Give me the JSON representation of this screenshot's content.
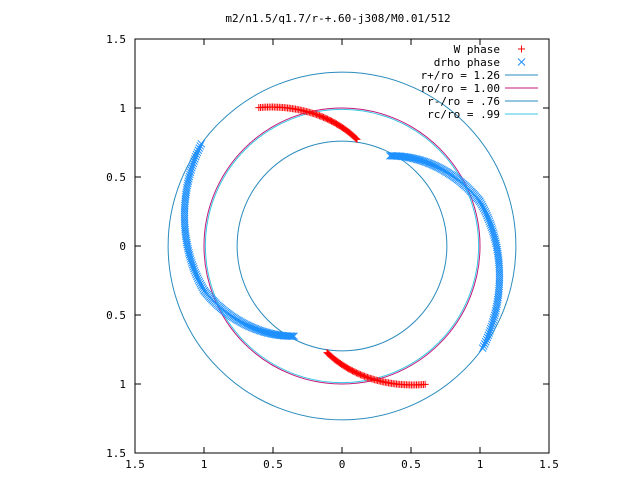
{
  "chart_data": {
    "type": "scatter",
    "title": "m2/n1.5/q1.7/r-+.60-j308/M0.01/512",
    "xlim": [
      -1.5,
      1.5
    ],
    "ylim": [
      -1.5,
      1.5
    ],
    "x_ticks": [
      "1.5",
      "1",
      "0.5",
      "0",
      "0.5",
      "1",
      "1.5"
    ],
    "y_ticks": [
      "1.5",
      "1",
      "0.5",
      "0",
      "0.5",
      "1",
      "1.5"
    ],
    "x_tick_values": [
      -1.5,
      -1,
      -0.5,
      0,
      0.5,
      1,
      1.5
    ],
    "y_tick_values": [
      1.5,
      1,
      0.5,
      0,
      -0.5,
      -1,
      -1.5
    ],
    "legend_position": "top-right",
    "grid": false,
    "circles": [
      {
        "name": "r+/ro = 1.26",
        "r": 1.26,
        "color": "#2a8bbd"
      },
      {
        "name": "ro/ro = 1.00",
        "r": 1.0,
        "color": "#c2187a"
      },
      {
        "name": "r-/ro = .76",
        "r": 0.76,
        "color": "#2a8bbd"
      },
      {
        "name": "rc/ro = .99",
        "r": 0.99,
        "color": "#38c8e6"
      }
    ],
    "series": [
      {
        "name": "W phase",
        "marker": "plus",
        "color": "#ff0000",
        "arcs": [
          {
            "r_start": 1.17,
            "r_end": 0.78,
            "theta_start": 121,
            "theta_end": 82
          },
          {
            "r_start": 0.78,
            "r_end": 1.17,
            "theta_start": 262,
            "theta_end": 301
          }
        ]
      },
      {
        "name": "drho phase",
        "marker": "cross",
        "color": "#1e90ff",
        "arcs": [
          {
            "r_start": 0.74,
            "r_end": 1.05,
            "theta_start": 62,
            "theta_end": 18
          },
          {
            "r_start": 1.05,
            "r_end": 1.26,
            "theta_start": 18,
            "theta_end": -36
          },
          {
            "r_start": 0.74,
            "r_end": 1.05,
            "theta_start": 242,
            "theta_end": 198
          },
          {
            "r_start": 1.05,
            "r_end": 1.26,
            "theta_start": 198,
            "theta_end": 144
          }
        ]
      }
    ]
  }
}
